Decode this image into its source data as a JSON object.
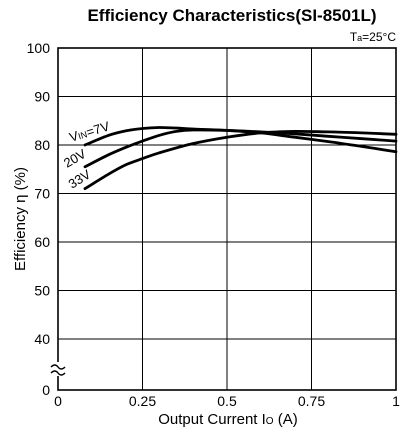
{
  "chart_data": {
    "type": "line",
    "title": "Efficiency Characteristics(SI-8501L)",
    "condition": "Ta=25°C",
    "xlabel": "Output Current Io (A)",
    "ylabel": "Efficiency η (%)",
    "xlim": [
      0,
      1
    ],
    "ylim": [
      0,
      100
    ],
    "x_ticks": [
      "0",
      "0.25",
      "0.5",
      "0.75",
      "1"
    ],
    "y_ticks": [
      "0",
      "40",
      "50",
      "60",
      "70",
      "80",
      "90",
      "100"
    ],
    "axis_break": "between 0 and 40",
    "grid": true,
    "series": [
      {
        "name": "VIN=7V",
        "label": "VIN=7V",
        "x": [
          0.08,
          0.15,
          0.2,
          0.25,
          0.3,
          0.35,
          0.4,
          0.5,
          0.6,
          0.7,
          0.8,
          0.9,
          1.0
        ],
        "y": [
          80.0,
          82.0,
          82.9,
          83.4,
          83.6,
          83.5,
          83.3,
          83.0,
          82.5,
          81.6,
          80.7,
          79.7,
          78.6
        ]
      },
      {
        "name": "20V",
        "label": "20V",
        "x": [
          0.08,
          0.15,
          0.2,
          0.25,
          0.3,
          0.35,
          0.4,
          0.5,
          0.6,
          0.7,
          0.8,
          0.9,
          1.0
        ],
        "y": [
          75.5,
          78.0,
          79.5,
          80.8,
          82.0,
          82.8,
          83.1,
          83.0,
          82.7,
          82.3,
          81.8,
          81.3,
          80.8
        ]
      },
      {
        "name": "33V",
        "label": "33V",
        "x": [
          0.08,
          0.15,
          0.2,
          0.25,
          0.3,
          0.4,
          0.5,
          0.6,
          0.7,
          0.8,
          0.9,
          1.0
        ],
        "y": [
          71.0,
          74.0,
          75.9,
          77.2,
          78.4,
          80.3,
          81.6,
          82.5,
          82.8,
          82.7,
          82.5,
          82.2
        ]
      }
    ]
  },
  "labels": {
    "vin_prefix": "V",
    "vin_sub": "IN",
    "vin_suffix": "=7V",
    "label_20v": "20V",
    "label_33v": "33V",
    "cond_prefix": "T",
    "cond_sub": "a",
    "cond_suffix": "=25°C",
    "ylabel_text": "Efficiency η (%)",
    "xlabel_prefix": "Output Current I",
    "xlabel_sub": "O",
    "xlabel_suffix": " (A)"
  }
}
